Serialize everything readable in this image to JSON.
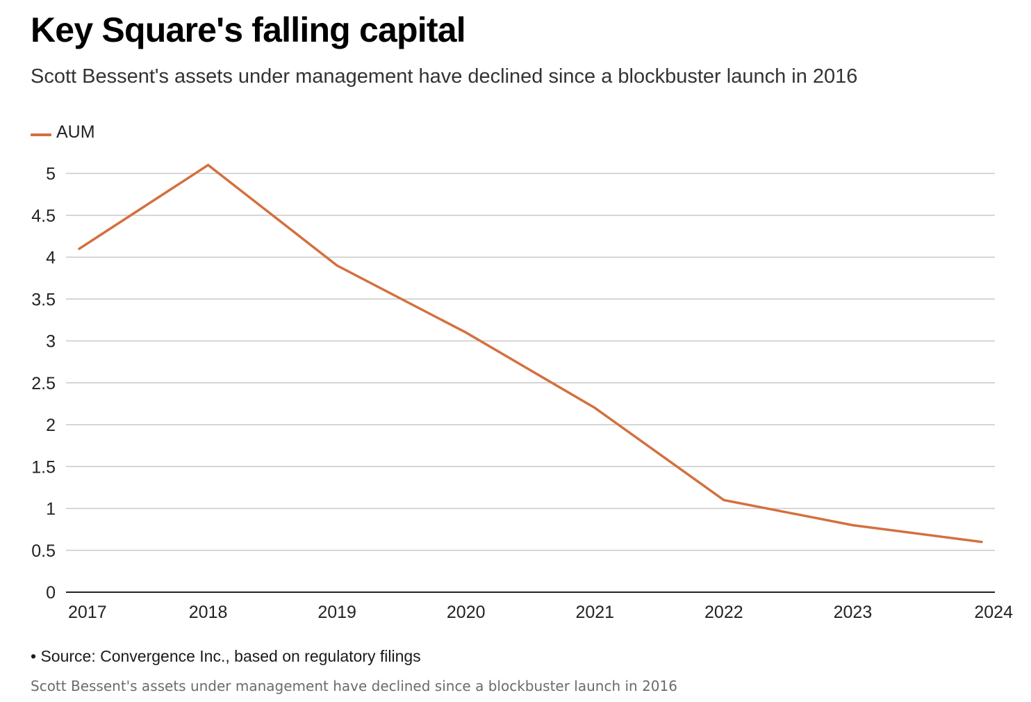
{
  "header": {
    "title": "Key Square's falling capital",
    "subtitle": "Scott Bessent's assets under management have declined since a blockbuster launch in 2016"
  },
  "chart_data": {
    "type": "line",
    "title": "Key Square's falling capital",
    "subtitle": "Scott Bessent's assets under management have declined since a blockbuster launch in 2016",
    "xlabel": "",
    "ylabel": "",
    "x": [
      "2017",
      "2018",
      "2019",
      "2020",
      "2021",
      "2022",
      "2023",
      "2024"
    ],
    "series": [
      {
        "name": "AUM",
        "color": "#d4703f",
        "values": [
          4.1,
          5.1,
          3.9,
          3.1,
          2.2,
          1.1,
          0.8,
          0.6
        ]
      }
    ],
    "ylim": [
      0,
      5
    ],
    "yticks": [
      "0",
      "0.5",
      "1",
      "1.5",
      "2",
      "2.5",
      "3",
      "3.5",
      "4",
      "4.5",
      "5"
    ],
    "grid": "horizontal",
    "legend": "top-left",
    "colors": {
      "grid": "#c9c9c9",
      "axis": "#222222",
      "tick_text": "#222222"
    }
  },
  "footer": {
    "source": "• Source: Convergence Inc., based on regulatory filings",
    "caption": "Scott Bessent's assets under management have declined since a blockbuster launch in 2016"
  }
}
